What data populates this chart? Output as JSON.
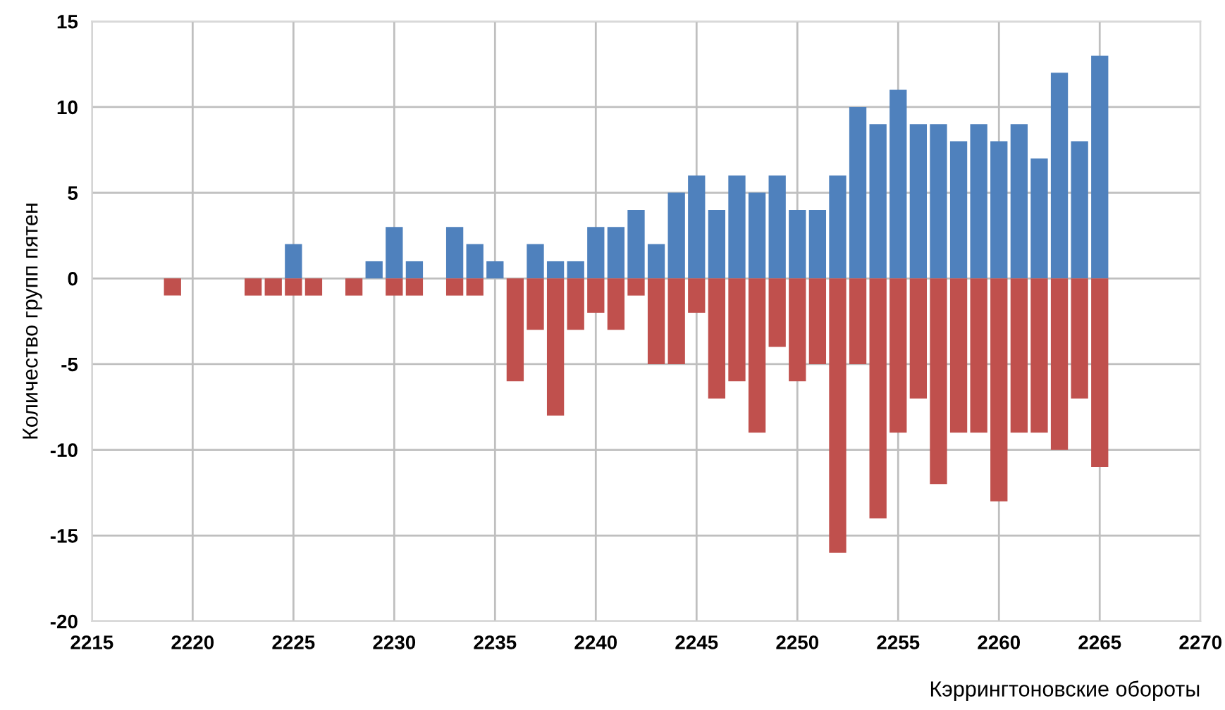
{
  "chart_data": {
    "type": "bar",
    "xlabel": "Кэррингтоновские обороты",
    "ylabel": "Количество групп пятен",
    "x": [
      2219,
      2220,
      2221,
      2222,
      2223,
      2224,
      2225,
      2226,
      2227,
      2228,
      2229,
      2230,
      2231,
      2232,
      2233,
      2234,
      2235,
      2236,
      2237,
      2238,
      2239,
      2240,
      2241,
      2242,
      2243,
      2244,
      2245,
      2246,
      2247,
      2248,
      2249,
      2250,
      2251,
      2252,
      2253,
      2254,
      2255,
      2256,
      2257,
      2258,
      2259,
      2260,
      2261,
      2262,
      2263,
      2264,
      2265
    ],
    "series": [
      {
        "color": "#4f81bd",
        "values": [
          null,
          null,
          null,
          null,
          null,
          null,
          2,
          null,
          null,
          null,
          1,
          3,
          1,
          null,
          3,
          2,
          1,
          null,
          2,
          1,
          1,
          3,
          3,
          4,
          2,
          5,
          6,
          4,
          6,
          5,
          6,
          4,
          4,
          6,
          10,
          9,
          11,
          9,
          9,
          8,
          9,
          8,
          9,
          7,
          12,
          8,
          13
        ]
      },
      {
        "color": "#c0504d",
        "values": [
          -1,
          null,
          null,
          null,
          -1,
          -1,
          -1,
          -1,
          null,
          -1,
          null,
          -1,
          -1,
          null,
          -1,
          -1,
          null,
          -6,
          -3,
          -8,
          -3,
          -2,
          -3,
          -1,
          -5,
          -5,
          -2,
          -7,
          -6,
          -9,
          -4,
          -6,
          -5,
          -16,
          -5,
          -14,
          -9,
          -7,
          -12,
          -9,
          -9,
          -13,
          -9,
          -9,
          -10,
          -7,
          -11
        ]
      }
    ],
    "xlim": [
      2215,
      2270
    ],
    "xticks": [
      2215,
      2220,
      2225,
      2230,
      2235,
      2240,
      2245,
      2250,
      2255,
      2260,
      2265,
      2270
    ],
    "ylim": [
      -20,
      15
    ],
    "yticks": [
      -20,
      -15,
      -10,
      -5,
      0,
      5,
      10,
      15
    ],
    "grid": true,
    "legend": false,
    "stacked": true
  }
}
